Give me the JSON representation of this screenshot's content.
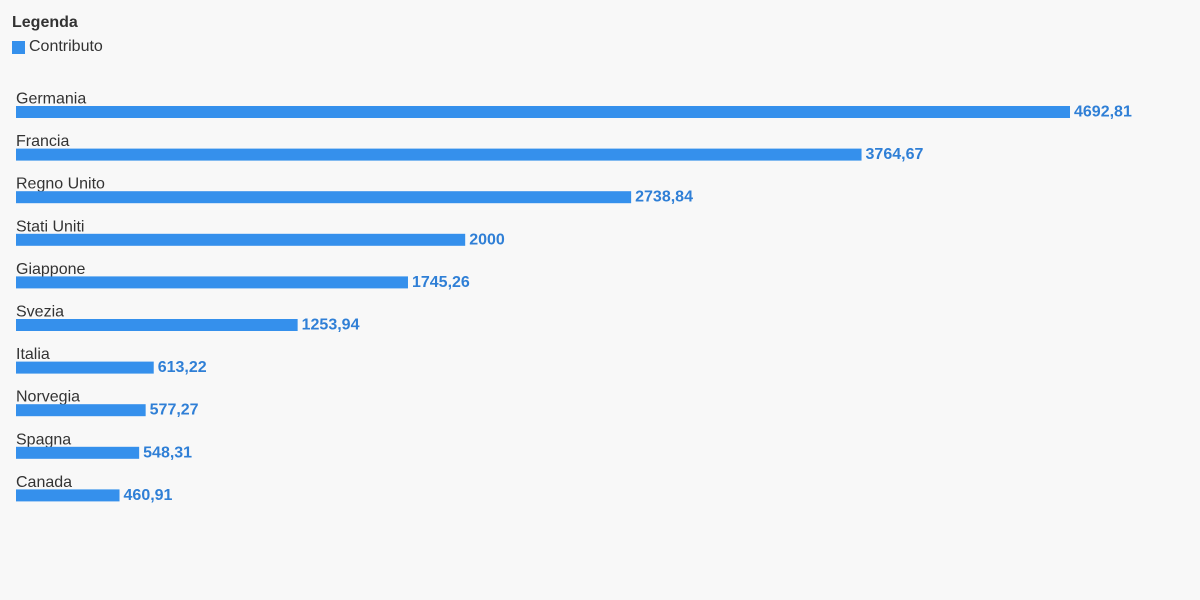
{
  "legend": {
    "title": "Legenda",
    "items": [
      {
        "label": "Contributo",
        "color": "#3590ec"
      }
    ]
  },
  "chart_data": {
    "type": "bar",
    "orientation": "horizontal",
    "title": "",
    "xlabel": "",
    "ylabel": "",
    "grid": false,
    "legend_position": "top-left",
    "xlim": [
      0,
      4692.81
    ],
    "categories": [
      "Germania",
      "Francia",
      "Regno Unito",
      "Stati Uniti",
      "Giappone",
      "Svezia",
      "Italia",
      "Norvegia",
      "Spagna",
      "Canada"
    ],
    "series": [
      {
        "name": "Contributo",
        "color": "#3590ec",
        "label_color": "#2f7fd6",
        "values": [
          4692.81,
          3764.67,
          2738.84,
          2000,
          1745.26,
          1253.94,
          613.22,
          577.27,
          548.31,
          460.91
        ],
        "labels": [
          "4692,81",
          "3764,67",
          "2738,84",
          "2000",
          "1745,26",
          "1253,94",
          "613,22",
          "577,27",
          "548,31",
          "460,91"
        ]
      }
    ]
  }
}
